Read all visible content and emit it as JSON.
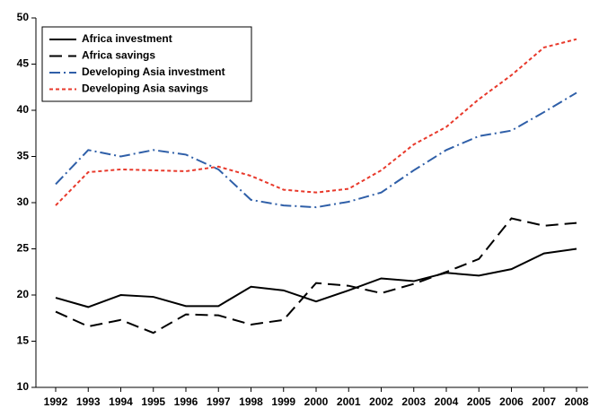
{
  "chart_data": {
    "type": "line",
    "categories": [
      "1992",
      "1993",
      "1994",
      "1995",
      "1996",
      "1997",
      "1998",
      "1999",
      "2000",
      "2001",
      "2002",
      "2003",
      "2004",
      "2005",
      "2006",
      "2007",
      "2008"
    ],
    "series": [
      {
        "name": "Africa investment",
        "color": "#000000",
        "dash": "solid",
        "values": [
          19.7,
          18.7,
          20.0,
          19.8,
          18.8,
          18.8,
          20.9,
          20.5,
          19.3,
          20.5,
          21.8,
          21.5,
          22.4,
          22.1,
          22.8,
          24.5,
          25.0
        ]
      },
      {
        "name": "Africa savings",
        "color": "#000000",
        "dash": "dashed",
        "values": [
          18.2,
          16.6,
          17.3,
          15.9,
          17.9,
          17.8,
          16.8,
          17.3,
          21.3,
          21.0,
          20.2,
          21.2,
          22.5,
          23.9,
          28.3,
          27.5,
          27.8
        ]
      },
      {
        "name": "Developing Asia investment",
        "color": "#2f5fa8",
        "dash": "dashdot",
        "values": [
          32.0,
          35.7,
          35.0,
          35.7,
          35.2,
          33.6,
          30.3,
          29.7,
          29.5,
          30.1,
          31.1,
          33.5,
          35.7,
          37.2,
          37.8,
          39.8,
          41.9
        ]
      },
      {
        "name": "Developing Asia savings",
        "color": "#e8392b",
        "dash": "dotted",
        "values": [
          29.7,
          33.3,
          33.6,
          33.5,
          33.4,
          33.9,
          32.9,
          31.4,
          31.1,
          31.5,
          33.5,
          36.3,
          38.2,
          41.2,
          43.8,
          46.8,
          47.7
        ]
      }
    ],
    "ylim": [
      10,
      50
    ],
    "yticks": [
      10,
      15,
      20,
      25,
      30,
      35,
      40,
      45,
      50
    ],
    "grid": false,
    "legend": "upper left"
  }
}
